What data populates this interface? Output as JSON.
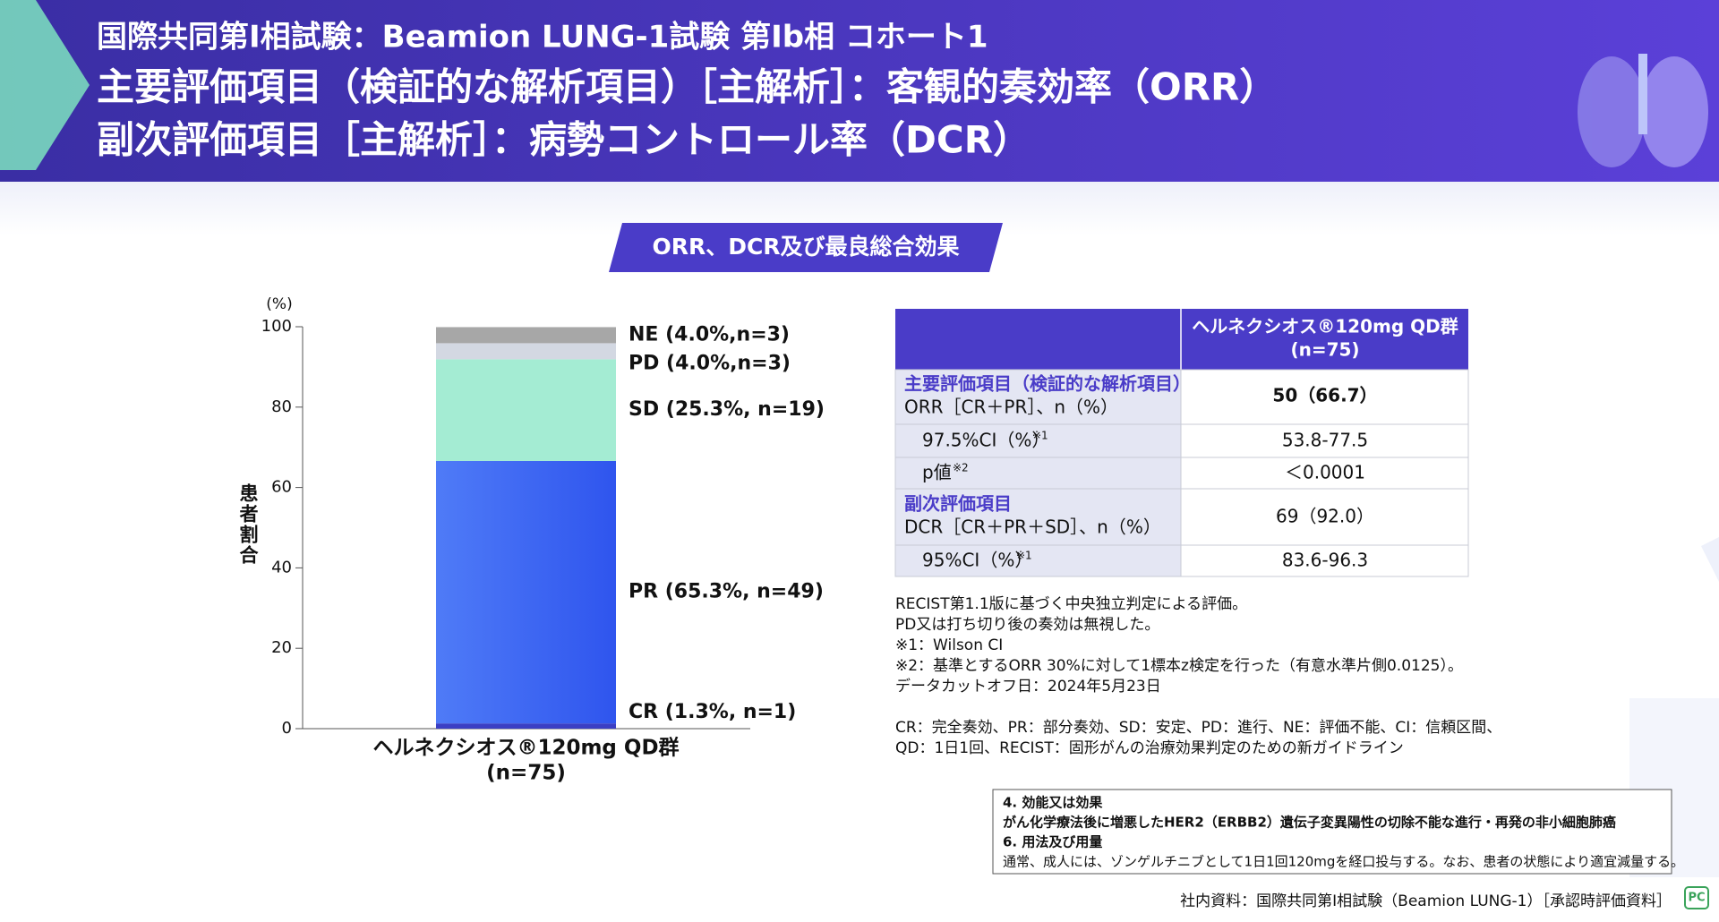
{
  "header": {
    "line1": "国際共同第Ⅰ相試験：Beamion LUNG-1試験 第Ib相 コホート1",
    "line2": "主要評価項目（検証的な解析項目）［主解析］：客観的奏効率（ORR）",
    "line3": "副次評価項目［主解析］：病勢コントロール率（DCR）"
  },
  "section_title": "ORR、DCR及び最良総合効果",
  "chart_data": {
    "type": "stacked-bar",
    "y_unit": "(%)",
    "y_label": "患者割合",
    "categories": [
      "ヘルネクシオス®120mg QD群"
    ],
    "category_sublabel": "(n=75)",
    "ylim": [
      0,
      100
    ],
    "yticks": [
      0,
      20,
      40,
      60,
      80,
      100
    ],
    "series": [
      {
        "name": "CR (1.3%, n=1)",
        "color": "#3b3fc4",
        "values": [
          1.3
        ]
      },
      {
        "name": "PR (65.3%, n=49)",
        "color": "#3a5ef2",
        "values": [
          65.3
        ]
      },
      {
        "name": "SD (25.3%, n=19)",
        "color": "#a4ecd3",
        "values": [
          25.3
        ]
      },
      {
        "name": "PD (4.0%,n=3)",
        "color": "#d3d8e2",
        "values": [
          4.0
        ]
      },
      {
        "name": "NE (4.0%,n=3)",
        "color": "#a7a7a7",
        "values": [
          4.0
        ]
      }
    ]
  },
  "table": {
    "column_header_line1": "ヘルネクシオス®120mg QD群",
    "column_header_line2": "(n=75)",
    "rows": [
      {
        "heading": "主要評価項目（検証的な解析項目）",
        "label": "ORR［CR＋PR］、n（%）",
        "value": "50（66.7）"
      },
      {
        "label": "97.5%CI（%）",
        "note": "※1",
        "value": "53.8-77.5"
      },
      {
        "label": "p値",
        "note": "※2",
        "value": "＜0.0001"
      },
      {
        "heading": "副次評価項目",
        "label": "DCR［CR＋PR＋SD］、n（%）",
        "value": "69（92.0）"
      },
      {
        "label": "95%CI（%）",
        "note": "※1",
        "value": "83.6-96.3"
      }
    ]
  },
  "notes": [
    "RECIST第1.1版に基づく中央独立判定による評価。",
    "PD又は打ち切り後の奏効は無視した。",
    "※1：Wilson CI",
    "※2：基準とするORR 30%に対して1標本z検定を行った（有意水準片側0.0125）。",
    "データカットオフ日：2024年5月23日"
  ],
  "abbreviations": [
    "CR：完全奏効、PR：部分奏効、SD：安定、PD：進行、NE：評価不能、CI：信頼区間、",
    "QD：1日1回、RECIST：固形がんの治療効果判定のための新ガイドライン"
  ],
  "indication_box": [
    "4. 効能又は効果",
    "がん化学療法後に増悪したHER2（ERBB2）遺伝子変異陽性の切除不能な進行・再発の非小細胞肺癌",
    "6. 用法及び用量",
    "通常、成人には、ゾンゲルチニブとして1日1回120mgを経口投与する。なお、患者の状態により適宜減量する。"
  ],
  "source": "社内資料：国際共同第Ⅰ相試験（Beamion LUNG-1）［承認時評価資料］",
  "logo": "PC"
}
